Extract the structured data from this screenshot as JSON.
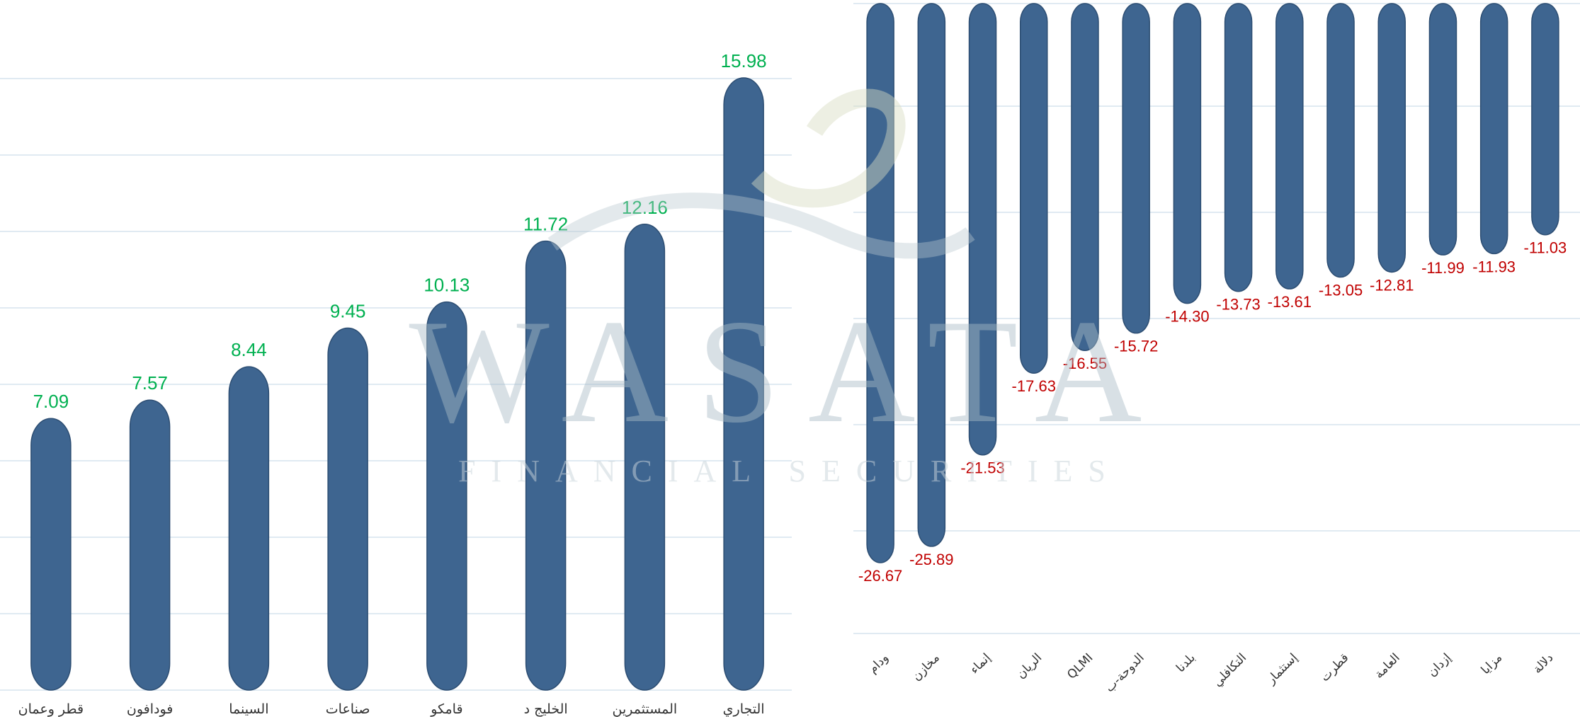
{
  "watermark": {
    "brand": "WASATA",
    "tagline": "FINANCIAL SECURITIES"
  },
  "colors": {
    "bar": "#3e6590",
    "bar_edge": "#2c4d72",
    "positive_label": "#00b050",
    "negative_label": "#c00000",
    "grid": "#d6e4ee"
  },
  "chart_data": [
    {
      "type": "bar",
      "title": "",
      "categories": [
        "قطر وعمان",
        "فودافون",
        "السينما",
        "صناعات",
        "قامكو",
        "الخليج د",
        "المستثمرين",
        "التجاري"
      ],
      "values": [
        7.09,
        7.57,
        8.44,
        9.45,
        10.13,
        11.72,
        12.16,
        15.98
      ],
      "value_labels": [
        "7.09",
        "7.57",
        "8.44",
        "9.45",
        "10.13",
        "11.72",
        "12.16",
        "15.98"
      ],
      "ylim": [
        0,
        18
      ],
      "grid": true
    },
    {
      "type": "bar",
      "title": "",
      "categories": [
        "ودام",
        "مخازن",
        "إنماء",
        "الريان",
        "QLMI",
        "الدوحة-ب",
        "بلدنا",
        "التكافلي",
        "إستثمار",
        "قطرت",
        "العامة",
        "إزدان",
        "مزايا",
        "دلالة"
      ],
      "values": [
        -26.67,
        -25.89,
        -21.53,
        -17.63,
        -16.55,
        -15.72,
        -14.3,
        -13.73,
        -13.61,
        -13.05,
        -12.81,
        -11.99,
        -11.93,
        -11.03
      ],
      "value_labels": [
        "-26.67",
        "-25.89",
        "-21.53",
        "-17.63",
        "-16.55",
        "-15.72",
        "-14.30",
        "-13.73",
        "-13.61",
        "-13.05",
        "-12.81",
        "-11.99",
        "-11.93",
        "-11.03"
      ],
      "ylim": [
        -30,
        0
      ],
      "grid": true
    }
  ]
}
